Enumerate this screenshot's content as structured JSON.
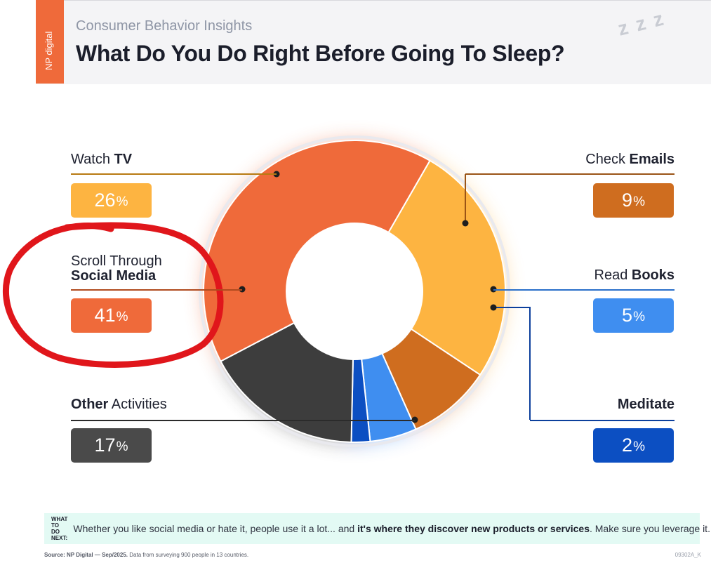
{
  "header": {
    "brand": "NP digital",
    "subtitle": "Consumer Behavior Insights",
    "title": "What Do You Do Right Before Going To Sleep?",
    "decoration": "z z z"
  },
  "chart_data": {
    "type": "pie",
    "title": "What Do You Do Right Before Going To Sleep?",
    "subtitle": "Consumer Behavior Insights",
    "unit": "%",
    "slices": [
      {
        "name": "Watch TV",
        "label_plain": "Watch ",
        "label_bold": "TV",
        "value": 26,
        "value_text": "26",
        "color": "#fdb441"
      },
      {
        "name": "Check Emails",
        "label_plain": "Check ",
        "label_bold": "Emails",
        "value": 9,
        "value_text": "9",
        "color": "#cf6d1f"
      },
      {
        "name": "Read Books",
        "label_plain": "Read ",
        "label_bold": "Books",
        "value": 5,
        "value_text": "5",
        "color": "#3f8ef0"
      },
      {
        "name": "Meditate",
        "label_plain": "",
        "label_bold": "Meditate",
        "value": 2,
        "value_text": "2",
        "color": "#0c4fc2"
      },
      {
        "name": "Other Activities",
        "label_plain": " Activities",
        "label_bold": "Other",
        "value": 17,
        "value_text": "17",
        "color": "#3d3d3d"
      },
      {
        "name": "Scroll Through Social Media",
        "label_plain": "Scroll Through",
        "label_bold": "Social Media",
        "value": 41,
        "value_text": "41",
        "color": "#ef6a3a"
      }
    ],
    "legend": "callouts"
  },
  "annotation": {
    "type": "hand-drawn-circle",
    "color": "#e0161b",
    "target": "Scroll Through Social Media"
  },
  "next_steps": {
    "tag_line1": "WHAT TO",
    "tag_line2": "DO NEXT:",
    "text_plain": "Whether you like social media or hate it, people use it a lot... and ",
    "text_bold": "it's where they discover new products or services",
    "text_tail": ". Make sure you leverage it."
  },
  "footer": {
    "source_bold": "Source: NP Digital — Sep/2025.",
    "source_text": " Data from surveying 900 people in 13 countries.",
    "code": "09302A_K"
  }
}
